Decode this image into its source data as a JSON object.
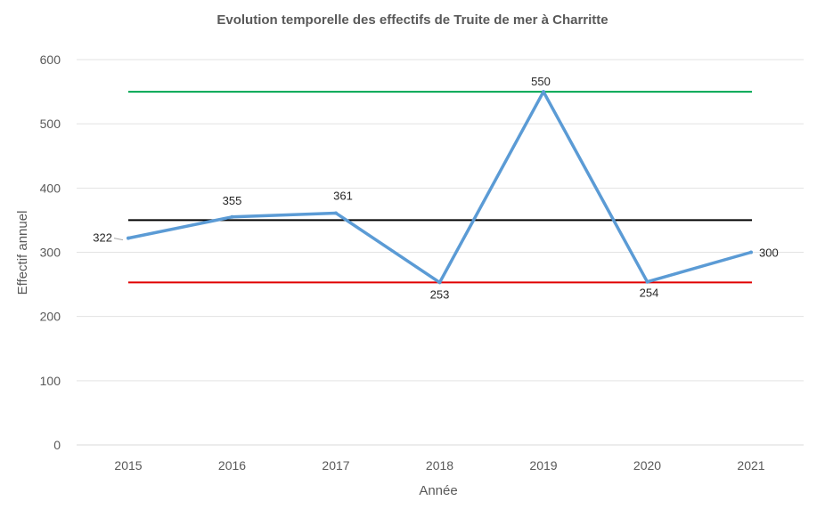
{
  "chart_data": {
    "type": "line",
    "title": "Evolution temporelle des effectifs de Truite de mer à Charritte",
    "xlabel": "Année",
    "ylabel": "Effectif annuel",
    "categories": [
      "2015",
      "2016",
      "2017",
      "2018",
      "2019",
      "2020",
      "2021"
    ],
    "series": [
      {
        "values": [
          322,
          355,
          361,
          253,
          550,
          254,
          300
        ],
        "color": "#5b9bd5",
        "data_labels": true
      }
    ],
    "reference_lines": [
      {
        "value": 550,
        "color": "#00a651"
      },
      {
        "value": 350,
        "color": "#000000"
      },
      {
        "value": 253,
        "color": "#e00000"
      }
    ],
    "ylim": [
      0,
      600
    ],
    "yticks": [
      0,
      100,
      200,
      300,
      400,
      500,
      600
    ],
    "grid": true,
    "legend": false
  }
}
